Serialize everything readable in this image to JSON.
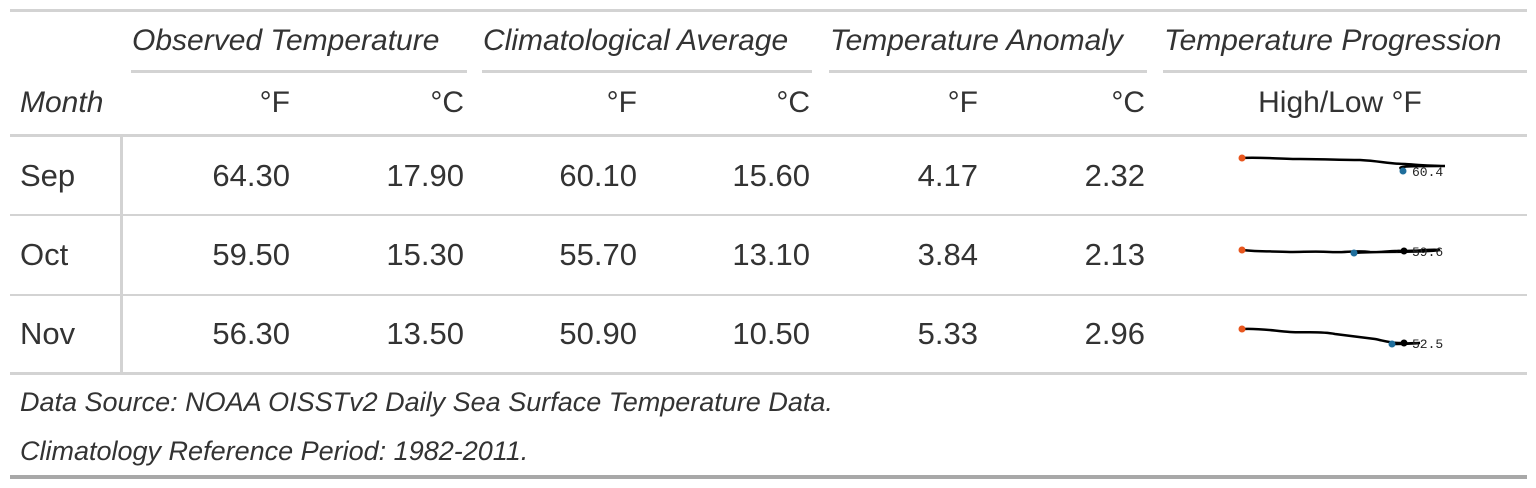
{
  "spanners": {
    "observed": "Observed Temperature",
    "climatology": "Climatological Average",
    "anomaly": "Temperature Anomaly",
    "progression": "Temperature Progression"
  },
  "columns": {
    "month": "Month",
    "obs_f": "°F",
    "obs_c": "°C",
    "clim_f": "°F",
    "clim_c": "°C",
    "anom_f": "°F",
    "anom_c": "°C",
    "spark": "High/Low °F"
  },
  "rows": [
    {
      "month": "Sep",
      "obs_f": "64.30",
      "obs_c": "17.90",
      "clim_f": "60.10",
      "clim_c": "15.60",
      "anom_f": "4.17",
      "anom_c": "2.32",
      "spark_end_label": "60.4"
    },
    {
      "month": "Oct",
      "obs_f": "59.50",
      "obs_c": "15.30",
      "clim_f": "55.70",
      "clim_c": "13.10",
      "anom_f": "3.84",
      "anom_c": "2.13",
      "spark_end_label": "59.6"
    },
    {
      "month": "Nov",
      "obs_f": "56.30",
      "obs_c": "13.50",
      "clim_f": "50.90",
      "clim_c": "10.50",
      "anom_f": "5.33",
      "anom_c": "2.96",
      "spark_end_label": "52.5"
    }
  ],
  "sparkline_colors": {
    "line": "#000000",
    "high": "#e8561e",
    "low": "#1f6e9c",
    "end": "#000000"
  },
  "footnotes": {
    "source": "Data Source: NOAA OISSTv2 Daily Sea Surface Temperature Data.",
    "reference": "Climatology Reference Period: 1982-2011."
  }
}
